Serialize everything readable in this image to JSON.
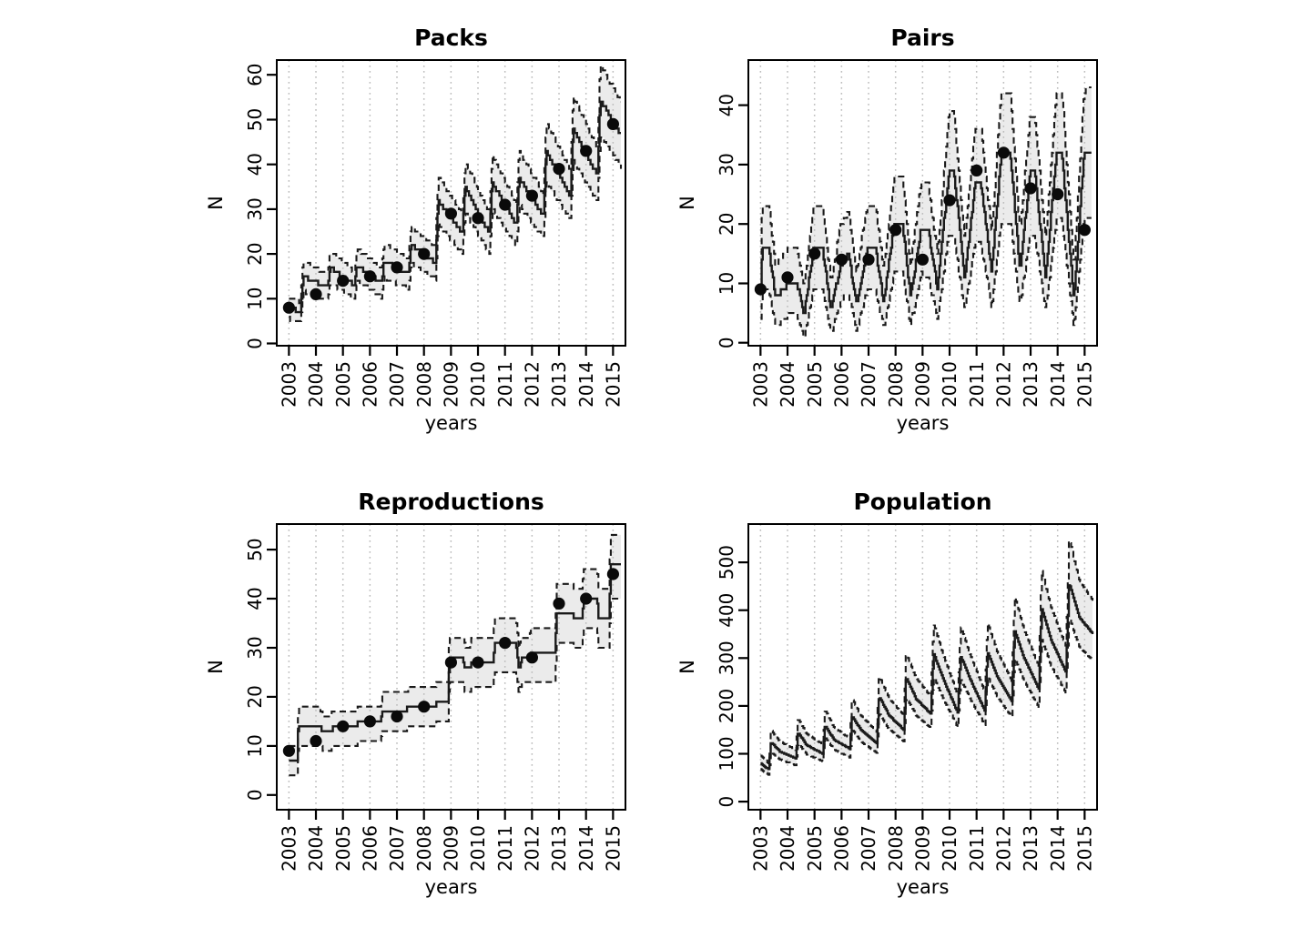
{
  "figure": {
    "background_color": "#ffffff",
    "grid_color": "#bdbdbd",
    "band_fill_color": "#ebebeb",
    "line_color": "#1a1a1a",
    "dot_color": "#0a0a0a",
    "panel_count": 4
  },
  "chart_data": [
    {
      "type": "line",
      "title": "Packs",
      "xlabel": "years",
      "ylabel": "N",
      "legend": "none",
      "grid": "vertical-dotted-per-year",
      "x_tick_years": [
        2003,
        2004,
        2005,
        2006,
        2007,
        2008,
        2009,
        2010,
        2011,
        2012,
        2013,
        2014,
        2015
      ],
      "y_ticks": [
        0,
        10,
        20,
        30,
        40,
        50,
        60
      ],
      "ylim": [
        -0.5,
        63.3
      ],
      "xlim": [
        2002.55,
        2015.46
      ],
      "series": {
        "observed_points": {
          "years": [
            2003,
            2004,
            2005,
            2006,
            2007,
            2008,
            2009,
            2010,
            2011,
            2012,
            2013,
            2014,
            2015
          ],
          "values": [
            8,
            11,
            14,
            15,
            17,
            20,
            29,
            28,
            31,
            33,
            39,
            43,
            49
          ]
        },
        "model_median_vertices": [
          [
            2003.0,
            8
          ],
          [
            2003.42,
            7
          ],
          [
            2003.52,
            15
          ],
          [
            2004.42,
            12.5
          ],
          [
            2004.52,
            17
          ],
          [
            2005.42,
            13
          ],
          [
            2005.52,
            17.5
          ],
          [
            2006.42,
            13.5
          ],
          [
            2006.52,
            18.5
          ],
          [
            2007.42,
            15.5
          ],
          [
            2007.52,
            22
          ],
          [
            2008.42,
            18
          ],
          [
            2008.52,
            32
          ],
          [
            2009.42,
            24.5
          ],
          [
            2009.52,
            35
          ],
          [
            2010.42,
            24.5
          ],
          [
            2010.52,
            36
          ],
          [
            2011.42,
            26.5
          ],
          [
            2011.52,
            37
          ],
          [
            2012.42,
            28.5
          ],
          [
            2012.52,
            43
          ],
          [
            2013.42,
            33
          ],
          [
            2013.52,
            48
          ],
          [
            2014.42,
            37.5
          ],
          [
            2014.52,
            54.5
          ],
          [
            2015.3,
            46.5
          ]
        ],
        "interval_upper_rule": {
          "mult": 1.12,
          "add": 1.5
        },
        "interval_lower_rule": {
          "mult": 0.88,
          "add": -1.5
        },
        "quantize_step": 1
      }
    },
    {
      "type": "line",
      "title": "Pairs",
      "xlabel": "years",
      "ylabel": "N",
      "legend": "none",
      "grid": "vertical-dotted-per-year",
      "x_tick_years": [
        2003,
        2004,
        2005,
        2006,
        2007,
        2008,
        2009,
        2010,
        2011,
        2012,
        2013,
        2014,
        2015
      ],
      "y_ticks": [
        0,
        10,
        20,
        30,
        40
      ],
      "ylim": [
        -0.5,
        47.6
      ],
      "xlim": [
        2002.55,
        2015.46
      ],
      "series": {
        "observed_points": {
          "years": [
            2003,
            2004,
            2005,
            2006,
            2007,
            2008,
            2009,
            2010,
            2011,
            2012,
            2013,
            2014,
            2015
          ],
          "values": [
            9,
            11,
            15,
            14,
            14,
            19,
            14,
            24,
            29,
            32,
            26,
            25,
            19
          ]
        },
        "model_median_vertices": [
          [
            2003.0,
            9
          ],
          [
            2003.06,
            16
          ],
          [
            2003.3,
            16
          ],
          [
            2003.55,
            7.5
          ],
          [
            2003.95,
            9.5
          ],
          [
            2004.05,
            10
          ],
          [
            2004.35,
            10
          ],
          [
            2004.6,
            4.5
          ],
          [
            2004.95,
            15.5
          ],
          [
            2005.3,
            15.5
          ],
          [
            2005.6,
            5.3
          ],
          [
            2005.95,
            13
          ],
          [
            2006.25,
            15
          ],
          [
            2006.55,
            6.5
          ],
          [
            2006.95,
            16
          ],
          [
            2007.25,
            16
          ],
          [
            2007.55,
            7
          ],
          [
            2007.95,
            20
          ],
          [
            2008.25,
            20
          ],
          [
            2008.55,
            7.5
          ],
          [
            2008.95,
            19.5
          ],
          [
            2009.2,
            19
          ],
          [
            2009.55,
            9
          ],
          [
            2009.97,
            29
          ],
          [
            2010.15,
            29
          ],
          [
            2010.55,
            11
          ],
          [
            2010.95,
            27
          ],
          [
            2011.15,
            27
          ],
          [
            2011.55,
            12
          ],
          [
            2011.9,
            31.5
          ],
          [
            2012.25,
            31.5
          ],
          [
            2012.6,
            12
          ],
          [
            2012.97,
            28.5
          ],
          [
            2013.15,
            28.5
          ],
          [
            2013.55,
            11
          ],
          [
            2013.95,
            32
          ],
          [
            2014.15,
            32
          ],
          [
            2014.6,
            7
          ],
          [
            2014.97,
            32
          ],
          [
            2015.28,
            32.5
          ]
        ],
        "interval_upper_rule": {
          "mult": 1.2,
          "add": 4
        },
        "interval_lower_rule": {
          "mult": 0.72,
          "add": -2.5
        },
        "quantize_step": 1
      }
    },
    {
      "type": "line",
      "title": "Reproductions",
      "xlabel": "years",
      "ylabel": "N",
      "legend": "none",
      "grid": "vertical-dotted-per-year",
      "x_tick_years": [
        2003,
        2004,
        2005,
        2006,
        2007,
        2008,
        2009,
        2010,
        2011,
        2012,
        2013,
        2014,
        2015
      ],
      "y_ticks": [
        0,
        10,
        20,
        30,
        40,
        50
      ],
      "ylim": [
        -3,
        55.2
      ],
      "xlim": [
        2002.55,
        2015.46
      ],
      "series": {
        "observed_points": {
          "years": [
            2003,
            2004,
            2005,
            2006,
            2007,
            2008,
            2009,
            2010,
            2011,
            2012,
            2013,
            2014,
            2015
          ],
          "values": [
            9,
            11,
            14,
            15,
            16,
            18,
            27,
            27,
            31,
            28,
            39,
            40,
            45
          ]
        },
        "model_median_vertices": [
          [
            2003.0,
            7
          ],
          [
            2003.3,
            7
          ],
          [
            2003.34,
            14
          ],
          [
            2004.15,
            14
          ],
          [
            2004.25,
            12.7
          ],
          [
            2004.55,
            12.7
          ],
          [
            2004.6,
            13.8
          ],
          [
            2005.5,
            13.8
          ],
          [
            2005.55,
            14.8
          ],
          [
            2006.4,
            14.8
          ],
          [
            2006.45,
            17
          ],
          [
            2007.35,
            17
          ],
          [
            2007.4,
            18
          ],
          [
            2008.4,
            18
          ],
          [
            2008.45,
            19
          ],
          [
            2008.88,
            19
          ],
          [
            2008.93,
            27.5
          ],
          [
            2009.45,
            27.5
          ],
          [
            2009.52,
            25.5
          ],
          [
            2009.7,
            25.5
          ],
          [
            2009.75,
            27
          ],
          [
            2010.55,
            27
          ],
          [
            2010.6,
            30.5
          ],
          [
            2011.4,
            30.5
          ],
          [
            2011.5,
            25.5
          ],
          [
            2011.6,
            27.5
          ],
          [
            2011.9,
            27.5
          ],
          [
            2011.95,
            28.5
          ],
          [
            2012.85,
            28.5
          ],
          [
            2012.9,
            37
          ],
          [
            2013.5,
            37
          ],
          [
            2013.55,
            36
          ],
          [
            2013.85,
            36
          ],
          [
            2013.9,
            40
          ],
          [
            2014.4,
            40
          ],
          [
            2014.45,
            36
          ],
          [
            2014.85,
            36
          ],
          [
            2014.9,
            46.5
          ],
          [
            2015.3,
            46.5
          ]
        ],
        "interval_upper_rule": {
          "mult": 1.1,
          "add": 2.2
        },
        "interval_lower_rule": {
          "mult": 0.9,
          "add": -2.2
        },
        "quantize_step": 1
      }
    },
    {
      "type": "line",
      "title": "Population",
      "xlabel": "years",
      "ylabel": "N",
      "legend": "none",
      "grid": "vertical-dotted-per-year",
      "x_tick_years": [
        2003,
        2004,
        2005,
        2006,
        2007,
        2008,
        2009,
        2010,
        2011,
        2012,
        2013,
        2014,
        2015
      ],
      "y_ticks": [
        0,
        100,
        200,
        300,
        400,
        500
      ],
      "ylim": [
        -17,
        580
      ],
      "xlim": [
        2002.55,
        2015.46
      ],
      "series": {
        "observed_points": null,
        "model_median_vertices": [
          [
            2003.0,
            80
          ],
          [
            2003.3,
            67
          ],
          [
            2003.38,
            125
          ],
          [
            2003.7,
            105
          ],
          [
            2004.3,
            90
          ],
          [
            2004.38,
            145
          ],
          [
            2004.7,
            118
          ],
          [
            2005.3,
            100
          ],
          [
            2005.38,
            160
          ],
          [
            2005.7,
            130
          ],
          [
            2006.3,
            110
          ],
          [
            2006.38,
            180
          ],
          [
            2006.7,
            150
          ],
          [
            2007.3,
            122
          ],
          [
            2007.38,
            220
          ],
          [
            2007.75,
            180
          ],
          [
            2008.3,
            150
          ],
          [
            2008.38,
            260
          ],
          [
            2008.75,
            215
          ],
          [
            2009.3,
            183
          ],
          [
            2009.4,
            310
          ],
          [
            2009.8,
            250
          ],
          [
            2010.3,
            185
          ],
          [
            2010.4,
            305
          ],
          [
            2010.8,
            250
          ],
          [
            2011.3,
            190
          ],
          [
            2011.4,
            312
          ],
          [
            2011.75,
            262
          ],
          [
            2012.3,
            210
          ],
          [
            2012.4,
            358
          ],
          [
            2012.75,
            300
          ],
          [
            2013.3,
            235
          ],
          [
            2013.4,
            405
          ],
          [
            2013.75,
            338
          ],
          [
            2014.3,
            270
          ],
          [
            2014.42,
            458
          ],
          [
            2014.8,
            385
          ],
          [
            2015.3,
            350
          ]
        ],
        "interval_upper_rule": {
          "mult": 1.2,
          "add": 0
        },
        "interval_lower_rule": {
          "mult": 0.84,
          "add": 0
        },
        "quantize_step": 2
      }
    }
  ]
}
